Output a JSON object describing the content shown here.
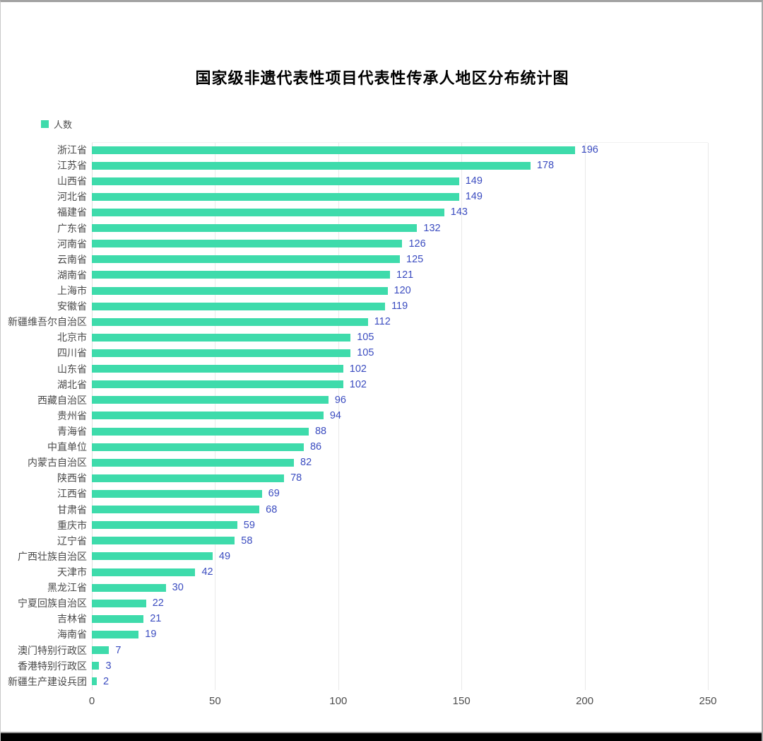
{
  "chart_data": {
    "type": "bar",
    "orientation": "horizontal",
    "title": "国家级非遗代表性项目代表性传承人地区分布统计图",
    "categories": [
      "浙江省",
      "江苏省",
      "山西省",
      "河北省",
      "福建省",
      "广东省",
      "河南省",
      "云南省",
      "湖南省",
      "上海市",
      "安徽省",
      "新疆维吾尔自治区",
      "北京市",
      "四川省",
      "山东省",
      "湖北省",
      "西藏自治区",
      "贵州省",
      "青海省",
      "中直单位",
      "内蒙古自治区",
      "陕西省",
      "江西省",
      "甘肃省",
      "重庆市",
      "辽宁省",
      "广西壮族自治区",
      "天津市",
      "黑龙江省",
      "宁夏回族自治区",
      "吉林省",
      "海南省",
      "澳门特别行政区",
      "香港特别行政区",
      "新疆生产建设兵团"
    ],
    "series": [
      {
        "name": "人数",
        "values": [
          196,
          178,
          149,
          149,
          143,
          132,
          126,
          125,
          121,
          120,
          119,
          112,
          105,
          105,
          102,
          102,
          96,
          94,
          88,
          86,
          82,
          78,
          69,
          68,
          59,
          58,
          49,
          42,
          30,
          22,
          21,
          19,
          7,
          3,
          2
        ]
      }
    ],
    "x_ticks": [
      0,
      50,
      100,
      150,
      200,
      250
    ],
    "xlim": [
      0,
      250
    ],
    "grid": true,
    "legend_position": "top-left",
    "colors": {
      "bar": "#3edbab",
      "value_label": "#3b4cc0",
      "category_label": "#4a4a4a",
      "axis_label": "#4d4d4d"
    }
  }
}
